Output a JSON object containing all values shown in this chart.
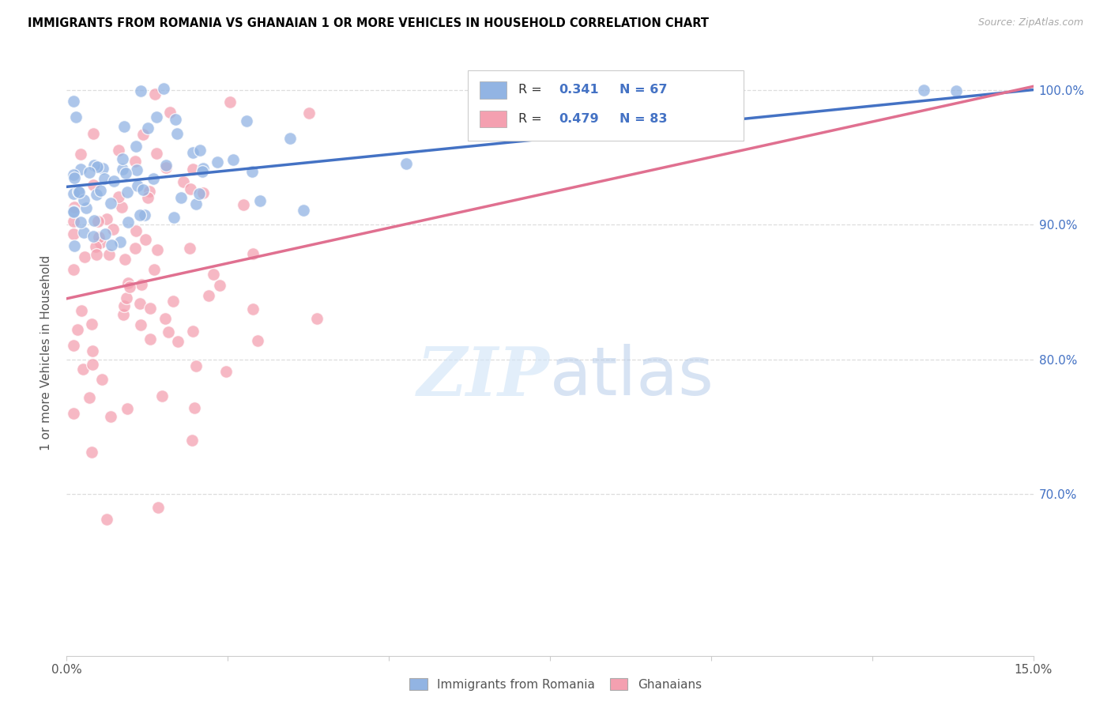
{
  "title": "IMMIGRANTS FROM ROMANIA VS GHANAIAN 1 OR MORE VEHICLES IN HOUSEHOLD CORRELATION CHART",
  "source": "Source: ZipAtlas.com",
  "ylabel": "1 or more Vehicles in Household",
  "ytick_labels": [
    "100.0%",
    "90.0%",
    "80.0%",
    "70.0%"
  ],
  "ytick_positions": [
    1.0,
    0.9,
    0.8,
    0.7
  ],
  "xlim": [
    0.0,
    0.15
  ],
  "ylim": [
    0.58,
    1.03
  ],
  "romania_R": 0.341,
  "romania_N": 67,
  "ghana_R": 0.479,
  "ghana_N": 83,
  "romania_color": "#92b4e3",
  "ghana_color": "#f4a0b0",
  "romania_line_color": "#4472c4",
  "ghana_line_color": "#e07090",
  "legend_romania": "Immigrants from Romania",
  "legend_ghana": "Ghanaians",
  "romania_intercept": 0.928,
  "romania_slope": 0.48,
  "ghana_intercept": 0.845,
  "ghana_slope": 1.05
}
